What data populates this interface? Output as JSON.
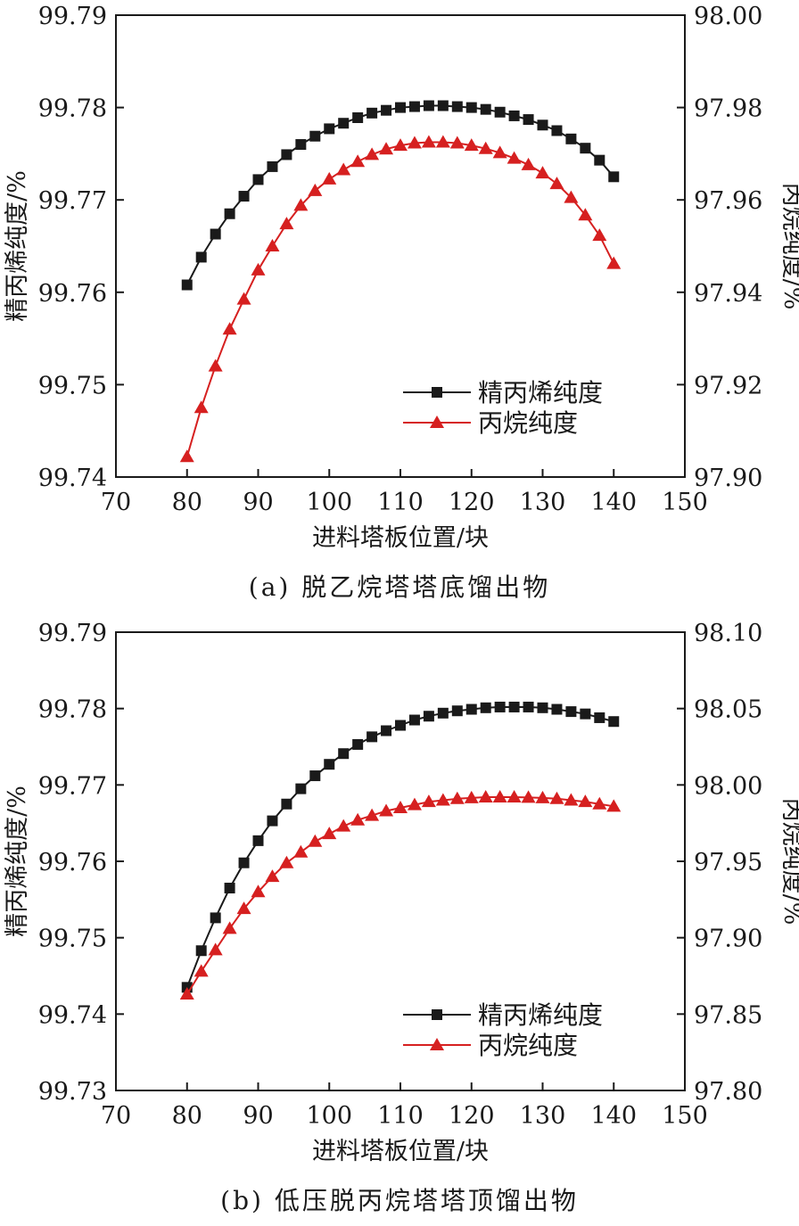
{
  "chart_data": [
    {
      "type": "line",
      "caption": "(a) 脱乙烷塔塔底馏出物",
      "xlabel": "进料塔板位置/块",
      "ylabel_left": "精丙烯纯度/%",
      "ylabel_right": "丙烷纯度/%",
      "xlim": [
        70,
        150
      ],
      "xticks": [
        "70",
        "80",
        "90",
        "100",
        "110",
        "120",
        "130",
        "140",
        "150"
      ],
      "ylim_left": [
        99.74,
        99.79
      ],
      "yticks_left": [
        "99.74",
        "99.75",
        "99.76",
        "99.77",
        "99.78",
        "99.79"
      ],
      "ylim_right": [
        97.9,
        98.0
      ],
      "yticks_right": [
        "97.90",
        "97.92",
        "97.94",
        "97.96",
        "97.98",
        "98.00"
      ],
      "legend_position": "lower-right",
      "x": [
        80,
        82,
        84,
        86,
        88,
        90,
        92,
        94,
        96,
        98,
        100,
        102,
        104,
        106,
        108,
        110,
        112,
        114,
        116,
        118,
        120,
        122,
        124,
        126,
        128,
        130,
        132,
        134,
        136,
        138,
        140
      ],
      "series": [
        {
          "name": "精丙烯纯度",
          "axis": "left",
          "color": "#1a1a1a",
          "marker": "square",
          "values": [
            99.7608,
            99.7638,
            99.7663,
            99.7685,
            99.7704,
            99.7722,
            99.7736,
            99.7749,
            99.776,
            99.7769,
            99.7777,
            99.7783,
            99.7789,
            99.7794,
            99.7797,
            99.78,
            99.7801,
            99.7802,
            99.7802,
            99.7801,
            99.78,
            99.7798,
            99.7795,
            99.7791,
            99.7787,
            99.7781,
            99.7775,
            99.7766,
            99.7756,
            99.7743,
            99.7725
          ]
        },
        {
          "name": "丙烷纯度",
          "axis": "right",
          "color": "#d62020",
          "marker": "triangle",
          "values": [
            97.9044,
            97.915,
            97.924,
            97.932,
            97.9385,
            97.9448,
            97.95,
            97.9548,
            97.9588,
            97.962,
            97.9645,
            97.9665,
            97.9683,
            97.9698,
            97.971,
            97.9718,
            97.9723,
            97.9725,
            97.9725,
            97.9723,
            97.9718,
            97.9711,
            97.9702,
            97.969,
            97.9676,
            97.9658,
            97.9635,
            97.9605,
            97.9567,
            97.9523,
            97.9462
          ]
        }
      ]
    },
    {
      "type": "line",
      "caption": "(b) 低压脱丙烷塔塔顶馏出物",
      "xlabel": "进料塔板位置/块",
      "ylabel_left": "精丙烯纯度/%",
      "ylabel_right": "丙烷纯度/%",
      "xlim": [
        70,
        150
      ],
      "xticks": [
        "70",
        "80",
        "90",
        "100",
        "110",
        "120",
        "130",
        "140",
        "150"
      ],
      "ylim_left": [
        99.73,
        99.79
      ],
      "yticks_left": [
        "99.73",
        "99.74",
        "99.75",
        "99.76",
        "99.77",
        "99.78",
        "99.79"
      ],
      "ylim_right": [
        97.8,
        98.1
      ],
      "yticks_right": [
        "97.80",
        "97.85",
        "97.90",
        "97.95",
        "98.00",
        "98.05",
        "98.10"
      ],
      "legend_position": "lower-right",
      "x": [
        80,
        82,
        84,
        86,
        88,
        90,
        92,
        94,
        96,
        98,
        100,
        102,
        104,
        106,
        108,
        110,
        112,
        114,
        116,
        118,
        120,
        122,
        124,
        126,
        128,
        130,
        132,
        134,
        136,
        138,
        140
      ],
      "series": [
        {
          "name": "精丙烯纯度",
          "axis": "left",
          "color": "#1a1a1a",
          "marker": "square",
          "values": [
            99.7435,
            99.7483,
            99.7526,
            99.7565,
            99.7598,
            99.7627,
            99.7653,
            99.7675,
            99.7695,
            99.7712,
            99.7727,
            99.7741,
            99.7753,
            99.7763,
            99.7771,
            99.7778,
            99.7785,
            99.779,
            99.7794,
            99.7797,
            99.7799,
            99.7801,
            99.7802,
            99.7802,
            99.7802,
            99.7801,
            99.7799,
            99.7796,
            99.7793,
            99.7788,
            99.7783
          ]
        },
        {
          "name": "丙烷纯度",
          "axis": "right",
          "color": "#d62020",
          "marker": "triangle",
          "values": [
            97.863,
            97.878,
            97.892,
            97.906,
            97.919,
            97.93,
            97.94,
            97.949,
            97.956,
            97.963,
            97.968,
            97.973,
            97.977,
            97.98,
            97.983,
            97.985,
            97.987,
            97.989,
            97.99,
            97.991,
            97.9915,
            97.992,
            97.992,
            97.992,
            97.9918,
            97.9915,
            97.991,
            97.99,
            97.989,
            97.9875,
            97.986
          ]
        }
      ]
    }
  ]
}
